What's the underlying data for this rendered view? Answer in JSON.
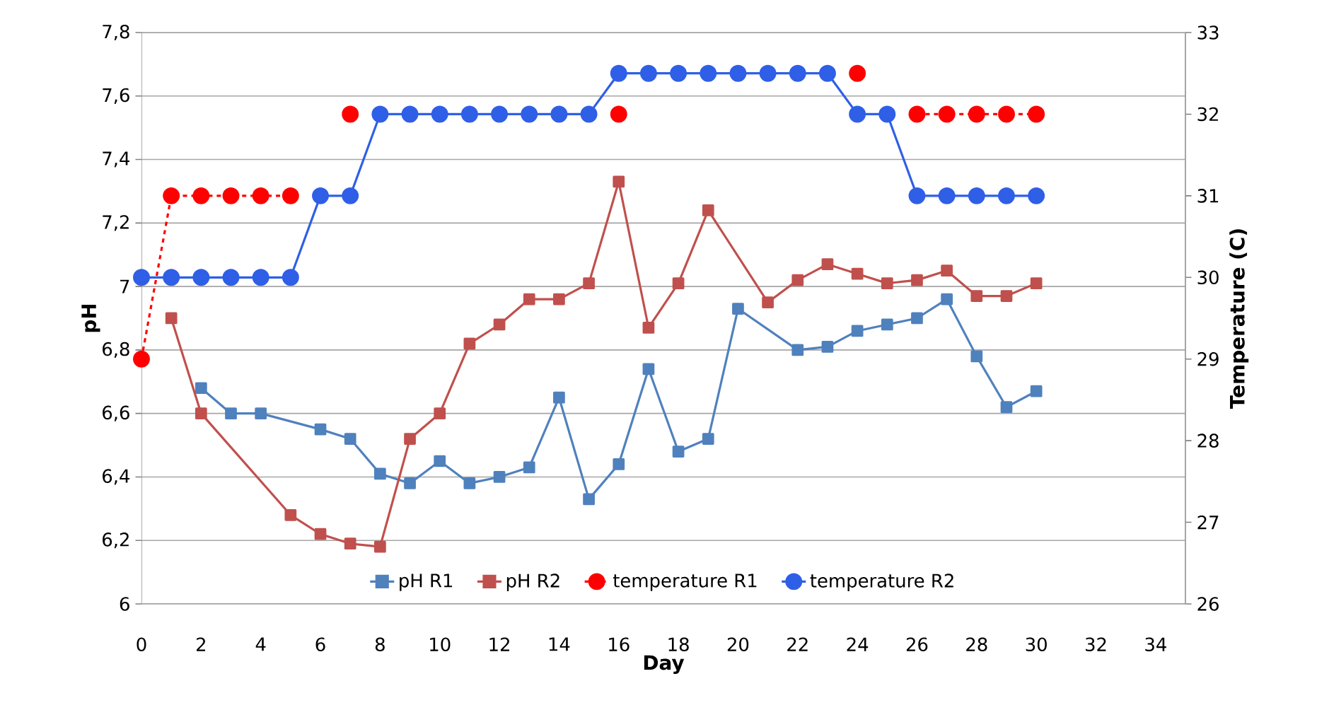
{
  "chart_data": {
    "type": "line",
    "xlabel": "Day",
    "ylabel": "pH",
    "y2label": "Temperature (C)",
    "xlim": [
      0,
      35
    ],
    "xticks": [
      0,
      2,
      4,
      6,
      8,
      10,
      12,
      14,
      16,
      18,
      20,
      22,
      24,
      26,
      28,
      30,
      32,
      34
    ],
    "ylim": [
      6,
      7.8
    ],
    "yticks": [
      6,
      {
        "value": 6.2,
        "label": "6,2"
      },
      {
        "value": 6.4,
        "label": "6,4"
      },
      {
        "value": 6.6,
        "label": "6,6"
      },
      {
        "value": 6.8,
        "label": "6,8"
      },
      7,
      {
        "value": 7.2,
        "label": "7,2"
      },
      {
        "value": 7.4,
        "label": "7,4"
      },
      {
        "value": 7.6,
        "label": "7,6"
      },
      {
        "value": 7.8,
        "label": "7,8"
      }
    ],
    "y2lim": [
      26,
      33
    ],
    "y2ticks": [
      26,
      27,
      28,
      29,
      30,
      31,
      32,
      33
    ],
    "grid": "y",
    "legend": "bottom",
    "series": [
      {
        "name": "pH R1",
        "color": "#4f81bd",
        "marker": "square",
        "line_style": "solid",
        "x": [
          2,
          3,
          4,
          6,
          7,
          8,
          9,
          10,
          11,
          12,
          13,
          14,
          15,
          16,
          17,
          18,
          19,
          20,
          22,
          23,
          24,
          25,
          26,
          27,
          28,
          29,
          30
        ],
        "values": [
          6.68,
          6.6,
          6.6,
          6.55,
          6.52,
          6.41,
          6.38,
          6.45,
          6.38,
          6.4,
          6.43,
          6.65,
          6.33,
          6.44,
          6.74,
          6.48,
          6.52,
          6.93,
          6.8,
          6.81,
          6.86,
          6.88,
          6.9,
          6.96,
          6.78,
          6.62,
          6.67
        ]
      },
      {
        "name": "pH R2",
        "color": "#c0504d",
        "marker": "square",
        "line_style": "solid",
        "x": [
          1,
          2,
          5,
          6,
          7,
          8,
          9,
          10,
          11,
          12,
          13,
          14,
          15,
          16,
          17,
          18,
          19,
          21,
          22,
          23,
          24,
          25,
          26,
          27,
          28,
          29,
          30
        ],
        "values": [
          6.9,
          6.6,
          6.28,
          6.22,
          6.19,
          6.18,
          6.52,
          6.6,
          6.82,
          6.88,
          6.96,
          6.96,
          7.01,
          7.33,
          6.87,
          7.01,
          7.24,
          6.95,
          7.02,
          7.07,
          7.04,
          7.01,
          7.02,
          7.05,
          6.97,
          6.97,
          7.01
        ]
      },
      {
        "name": "temperature R1",
        "color": "#ff0000",
        "marker": "circle",
        "line_style": "dashed",
        "axis": "y2",
        "x": [
          0,
          1,
          2,
          3,
          4,
          5,
          6,
          7,
          8,
          9,
          10,
          11,
          12,
          13,
          14,
          15,
          16,
          17,
          18,
          19,
          20,
          21,
          22,
          23,
          24,
          25,
          26,
          27,
          28,
          29,
          30
        ],
        "values": [
          29,
          31,
          31,
          31,
          31,
          31,
          null,
          32,
          null,
          null,
          null,
          null,
          null,
          null,
          null,
          null,
          32,
          null,
          null,
          null,
          null,
          null,
          null,
          null,
          32.5,
          null,
          32,
          32,
          32,
          32,
          32
        ]
      },
      {
        "name": "temperature R2",
        "color": "#2f5fe6",
        "marker": "circle",
        "line_style": "solid",
        "axis": "y2",
        "x": [
          0,
          1,
          2,
          3,
          4,
          5,
          6,
          7,
          8,
          9,
          10,
          11,
          12,
          13,
          14,
          15,
          16,
          17,
          18,
          19,
          20,
          21,
          22,
          23,
          24,
          25,
          26,
          27,
          28,
          29,
          30
        ],
        "values": [
          30,
          30,
          30,
          30,
          30,
          30,
          31,
          31,
          32,
          32,
          32,
          32,
          32,
          32,
          32,
          32,
          32.5,
          32.5,
          32.5,
          32.5,
          32.5,
          32.5,
          32.5,
          32.5,
          32,
          32,
          31,
          31,
          31,
          31,
          31
        ]
      }
    ]
  }
}
